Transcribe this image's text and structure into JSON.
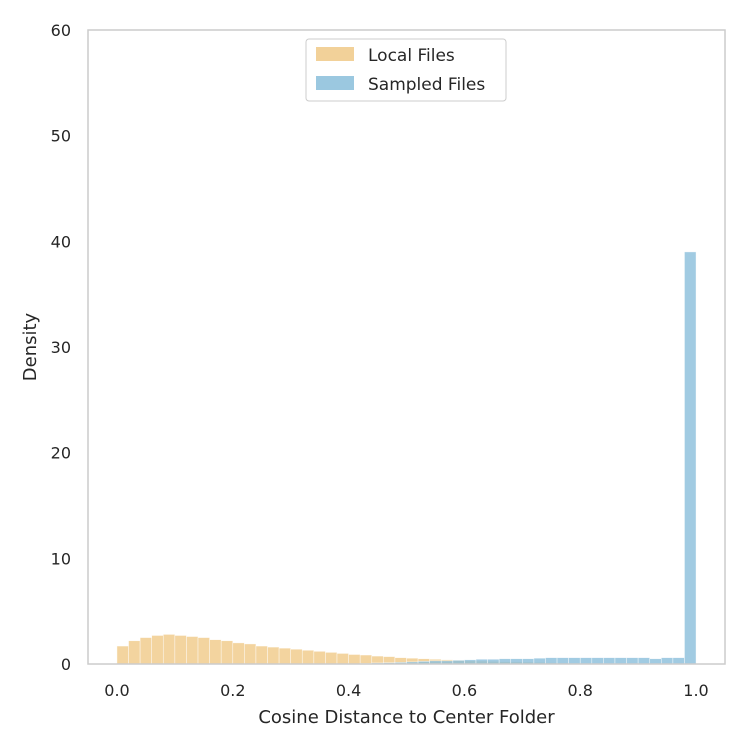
{
  "chart_data": {
    "type": "bar",
    "xlabel": "Cosine Distance to Center Folder",
    "ylabel": "Density",
    "xlim": [
      -0.05,
      1.05
    ],
    "ylim": [
      0,
      60
    ],
    "xticks": [
      "0.0",
      "0.2",
      "0.4",
      "0.6",
      "0.8",
      "1.0"
    ],
    "yticks": [
      "0",
      "10",
      "20",
      "30",
      "40",
      "50",
      "60"
    ],
    "grid": false,
    "legend_position": "top-center",
    "bin_width": 0.02,
    "colors": {
      "local": "#f0c987",
      "sampled": "#89bedb"
    },
    "series": [
      {
        "name": "Local Files",
        "x": [
          0.0,
          0.02,
          0.04,
          0.06,
          0.08,
          0.1,
          0.12,
          0.14,
          0.16,
          0.18,
          0.2,
          0.22,
          0.24,
          0.26,
          0.28,
          0.3,
          0.32,
          0.34,
          0.36,
          0.38,
          0.4,
          0.42,
          0.44,
          0.46,
          0.48,
          0.5,
          0.52,
          0.54,
          0.56,
          0.58,
          0.6,
          0.62,
          0.64,
          0.66,
          0.68,
          0.7,
          0.72,
          0.74,
          0.76,
          0.78,
          0.8,
          0.82,
          0.84,
          0.86,
          0.88,
          0.9,
          0.92,
          0.94,
          0.96,
          0.98
        ],
        "values": [
          1.7,
          2.2,
          2.5,
          2.7,
          2.8,
          2.7,
          2.6,
          2.5,
          2.3,
          2.2,
          2.0,
          1.9,
          1.7,
          1.6,
          1.5,
          1.4,
          1.3,
          1.2,
          1.1,
          1.0,
          0.9,
          0.85,
          0.75,
          0.7,
          0.6,
          0.55,
          0.5,
          0.45,
          0.4,
          0.35,
          0.3,
          0.28,
          0.25,
          0.22,
          0.2,
          0.18,
          0.15,
          0.12,
          0.1,
          0.08,
          0.06,
          0.05,
          0.04,
          0.03,
          0.03,
          0.02,
          0.02,
          0.01,
          0.01,
          0.01
        ]
      },
      {
        "name": "Sampled Files",
        "x": [
          0.0,
          0.02,
          0.04,
          0.06,
          0.08,
          0.1,
          0.12,
          0.14,
          0.16,
          0.18,
          0.2,
          0.22,
          0.24,
          0.26,
          0.28,
          0.3,
          0.32,
          0.34,
          0.36,
          0.38,
          0.4,
          0.42,
          0.44,
          0.46,
          0.48,
          0.5,
          0.52,
          0.54,
          0.56,
          0.58,
          0.6,
          0.62,
          0.64,
          0.66,
          0.68,
          0.7,
          0.72,
          0.74,
          0.76,
          0.78,
          0.8,
          0.82,
          0.84,
          0.86,
          0.88,
          0.9,
          0.92,
          0.94,
          0.96,
          0.98
        ],
        "values": [
          0,
          0,
          0,
          0,
          0,
          0,
          0,
          0,
          0,
          0,
          0,
          0,
          0,
          0,
          0,
          0,
          0,
          0,
          0,
          0,
          0,
          0.05,
          0.1,
          0.12,
          0.15,
          0.2,
          0.25,
          0.3,
          0.3,
          0.35,
          0.4,
          0.45,
          0.45,
          0.5,
          0.5,
          0.5,
          0.55,
          0.6,
          0.6,
          0.6,
          0.6,
          0.6,
          0.6,
          0.6,
          0.6,
          0.6,
          0.5,
          0.6,
          0.6,
          39.0
        ]
      }
    ]
  }
}
